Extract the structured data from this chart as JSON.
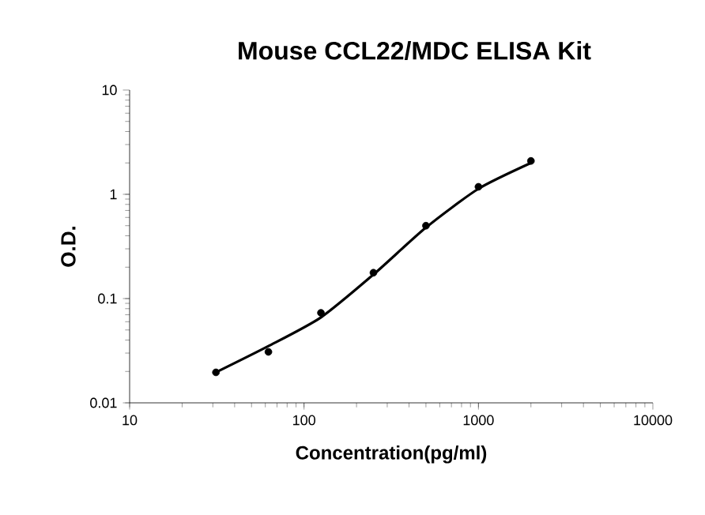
{
  "chart_data": {
    "type": "scatter",
    "title": "Mouse CCL22/MDC ELISA Kit",
    "xlabel": "Concentration(pg/ml)",
    "ylabel": "O.D.",
    "log": "xy",
    "xlim": [
      10,
      10000
    ],
    "xticks": [
      10,
      100,
      1000,
      10000
    ],
    "ylim": [
      0.01,
      10
    ],
    "yticks": [
      0.01,
      0.1,
      1,
      10
    ],
    "series": [
      {
        "marker": "circle",
        "color": "#000000",
        "x": [
          31.25,
          62.5,
          125,
          250,
          500,
          1000,
          2000
        ],
        "values": [
          0.0196,
          0.0308,
          0.073,
          0.177,
          0.5,
          1.18,
          2.09
        ]
      },
      {
        "type": "line",
        "marker": "none",
        "line_style": "solid",
        "color": "#000000",
        "x": [
          31.25,
          62.5,
          125,
          250,
          500,
          1000,
          2000
        ],
        "values": [
          0.0196,
          0.035,
          0.066,
          0.17,
          0.48,
          1.13,
          2.0
        ]
      }
    ]
  }
}
